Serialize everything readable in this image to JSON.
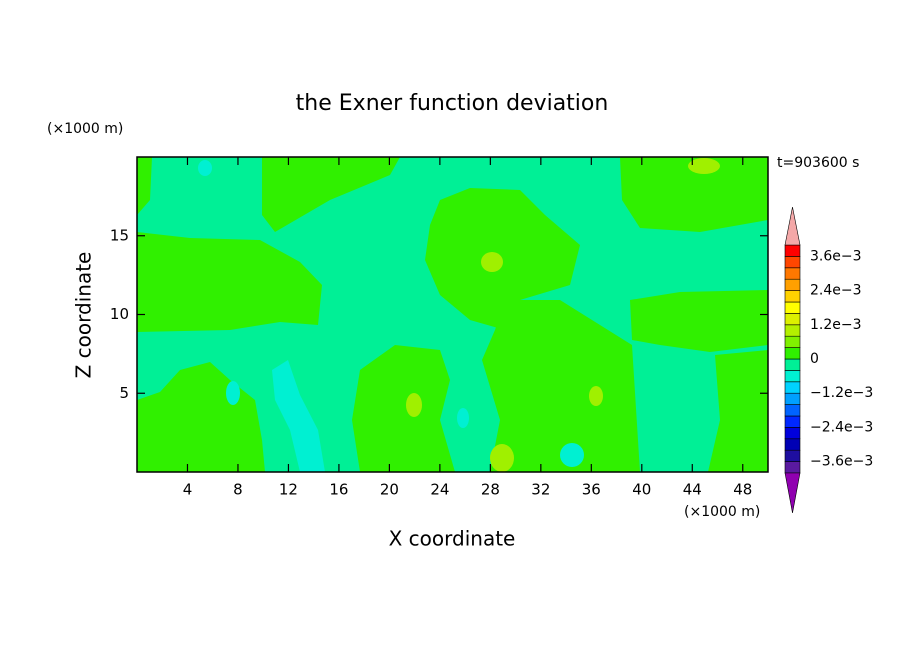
{
  "chart_data": {
    "type": "contour",
    "title": "the Exner function deviation",
    "x_label": "X coordinate",
    "y_label": "Z coordinate",
    "x_unit": "(×1000 m)",
    "y_unit": "(×1000 m)",
    "annotation": "t=903600 s",
    "xlim": [
      0,
      50
    ],
    "ylim": [
      0,
      20
    ],
    "xticks": [
      4,
      8,
      12,
      16,
      20,
      24,
      28,
      32,
      36,
      40,
      44,
      48
    ],
    "yticks": [
      5,
      10,
      15
    ],
    "colorbar": {
      "levels": [
        -0.004,
        -0.0036,
        -0.0032,
        -0.0028,
        -0.0024,
        -0.002,
        -0.0016,
        -0.0012,
        -0.0008,
        -0.0004,
        0,
        0.0004,
        0.0008,
        0.0012,
        0.0016,
        0.002,
        0.0024,
        0.0028,
        0.0032,
        0.0036,
        0.004
      ],
      "colors": [
        "#5a1aa0",
        "#1e0ea0",
        "#0000b4",
        "#0000dc",
        "#0028ff",
        "#0064ff",
        "#00a0ff",
        "#00d2ff",
        "#00f0d2",
        "#00f096",
        "#30f000",
        "#80f000",
        "#b4f000",
        "#dcf000",
        "#ffff00",
        "#ffd200",
        "#ffa000",
        "#ff7800",
        "#ff4600",
        "#ff0000"
      ],
      "under_color": "#9000b0",
      "over_color": "#f4a8a8",
      "ticks": [
        {
          "value": -0.0036,
          "label": "−3.6e−3"
        },
        {
          "value": -0.0024,
          "label": "−2.4e−3"
        },
        {
          "value": -0.0012,
          "label": "−1.2e−3"
        },
        0,
        {
          "value": 0.0012,
          "label": "1.2e−3"
        },
        {
          "value": 0.0024,
          "label": "2.4e−3"
        },
        {
          "value": 0.0036,
          "label": "3.6e−3"
        }
      ]
    }
  }
}
